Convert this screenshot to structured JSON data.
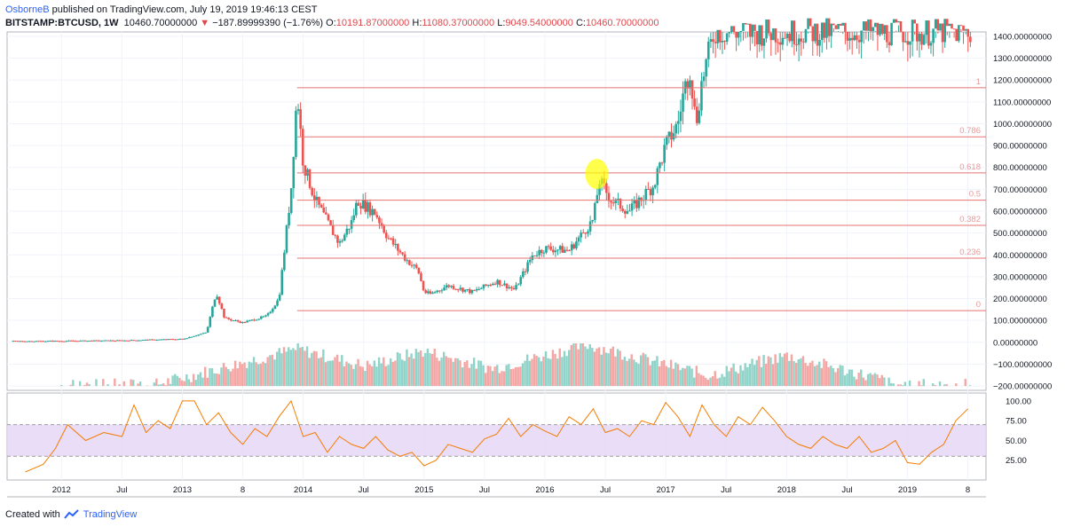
{
  "header": {
    "author": "OsborneB",
    "published": "published on TradingView.com, July 19, 2019 19:46:13 CEST"
  },
  "ohlc": {
    "symbol": "BITSTAMP:BTCUSD, 1W",
    "price": "10460.70000000",
    "change": "−187.89999390 (−1.76%)",
    "o_label": "O:",
    "o": "10191.87000000",
    "h_label": "H:",
    "h": "11080.37000000",
    "l_label": "L:",
    "l": "9049.54000000",
    "c_label": "C:",
    "c": "10460.70000000"
  },
  "footer": {
    "created_with": "Created with",
    "brand": "TradingView"
  },
  "colors": {
    "up": "#26a69a",
    "down": "#ef5350",
    "fib": "#e57373",
    "rsi": "#f57c00",
    "rsi_band": "#e5d4f5",
    "highlight": "#ffff00"
  },
  "chart_data": [
    {
      "type": "candlestick",
      "ylim": [
        -220,
        1420
      ],
      "y_ticks": [
        "1400.00000000",
        "1300.00000000",
        "1200.00000000",
        "1100.00000000",
        "1000.00000000",
        "900.00000000",
        "800.00000000",
        "700.00000000",
        "600.00000000",
        "500.00000000",
        "400.00000000",
        "300.00000000",
        "200.00000000",
        "100.00000000",
        "0.00000000",
        "−100.00000000",
        "−200.00000000"
      ],
      "y_tick_values": [
        1400,
        1300,
        1200,
        1100,
        1000,
        900,
        800,
        700,
        600,
        500,
        400,
        300,
        200,
        100,
        0,
        -100,
        -200
      ],
      "x_ticks": [
        "2012",
        "Jul",
        "2013",
        "8",
        "2014",
        "Jul",
        "2015",
        "Jul",
        "2016",
        "Jul",
        "2017",
        "Jul",
        "2018",
        "Jul",
        "2019",
        "8"
      ],
      "x_tick_times": [
        2012.0,
        2012.5,
        2013.0,
        2013.5,
        2014.0,
        2014.5,
        2015.0,
        2015.5,
        2016.0,
        2016.5,
        2017.0,
        2017.5,
        2018.0,
        2018.5,
        2019.0,
        2019.5
      ],
      "price_path": [
        [
          2011.6,
          5
        ],
        [
          2012.0,
          6
        ],
        [
          2012.5,
          8
        ],
        [
          2013.0,
          15
        ],
        [
          2013.2,
          45
        ],
        [
          2013.28,
          230
        ],
        [
          2013.35,
          110
        ],
        [
          2013.5,
          90
        ],
        [
          2013.7,
          120
        ],
        [
          2013.8,
          200
        ],
        [
          2013.9,
          700
        ],
        [
          2013.95,
          1150
        ],
        [
          2014.0,
          820
        ],
        [
          2014.1,
          650
        ],
        [
          2014.2,
          550
        ],
        [
          2014.3,
          450
        ],
        [
          2014.4,
          550
        ],
        [
          2014.45,
          650
        ],
        [
          2014.6,
          590
        ],
        [
          2014.7,
          480
        ],
        [
          2014.85,
          380
        ],
        [
          2014.95,
          330
        ],
        [
          2015.0,
          230
        ],
        [
          2015.05,
          220
        ],
        [
          2015.2,
          260
        ],
        [
          2015.4,
          230
        ],
        [
          2015.6,
          280
        ],
        [
          2015.75,
          240
        ],
        [
          2015.9,
          400
        ],
        [
          2016.0,
          430
        ],
        [
          2016.2,
          420
        ],
        [
          2016.4,
          560
        ],
        [
          2016.45,
          740
        ],
        [
          2016.55,
          650
        ],
        [
          2016.7,
          600
        ],
        [
          2016.9,
          720
        ],
        [
          2017.0,
          900
        ],
        [
          2017.1,
          1000
        ],
        [
          2017.15,
          1150
        ],
        [
          2017.2,
          1250
        ],
        [
          2017.25,
          1000
        ],
        [
          2017.3,
          1200
        ],
        [
          2017.4,
          1420
        ]
      ],
      "volume": {
        "baseline_value": -200,
        "peaks": [
          [
            2013.95,
            -30
          ],
          [
            2015.0,
            -40
          ],
          [
            2016.35,
            -10
          ],
          [
            2017.0,
            -110
          ],
          [
            2018.0,
            -60
          ]
        ]
      },
      "fib_levels": [
        {
          "label": "1",
          "value": 1165
        },
        {
          "label": "0.786",
          "value": 940
        },
        {
          "label": "0.618",
          "value": 775
        },
        {
          "label": "0.5",
          "value": 650
        },
        {
          "label": "0.382",
          "value": 535
        },
        {
          "label": "0.236",
          "value": 385
        },
        {
          "label": "0",
          "value": 145
        }
      ],
      "fib_start_time": 2013.95,
      "highlight": {
        "time": 2016.43,
        "value": 770
      }
    },
    {
      "type": "line",
      "name": "RSI",
      "ylim": [
        0,
        110
      ],
      "y_ticks": [
        "100.00",
        "75.00",
        "50.00",
        "25.00"
      ],
      "y_tick_values": [
        100,
        75,
        50,
        25
      ],
      "band": [
        30,
        70
      ],
      "x": [
        2011.7,
        2011.85,
        2011.95,
        2012.05,
        2012.2,
        2012.35,
        2012.5,
        2012.6,
        2012.7,
        2012.8,
        2012.9,
        2013.0,
        2013.1,
        2013.2,
        2013.3,
        2013.4,
        2013.5,
        2013.6,
        2013.7,
        2013.8,
        2013.9,
        2014.0,
        2014.1,
        2014.2,
        2014.3,
        2014.4,
        2014.5,
        2014.6,
        2014.7,
        2014.8,
        2014.9,
        2015.0,
        2015.1,
        2015.2,
        2015.3,
        2015.4,
        2015.5,
        2015.6,
        2015.7,
        2015.8,
        2015.9,
        2016.0,
        2016.1,
        2016.2,
        2016.3,
        2016.4,
        2016.5,
        2016.6,
        2016.7,
        2016.8,
        2016.9,
        2017.0,
        2017.1,
        2017.2,
        2017.3,
        2017.4,
        2017.5,
        2017.6,
        2017.7,
        2017.8,
        2017.9,
        2018.0,
        2018.1,
        2018.2,
        2018.3,
        2018.4,
        2018.5,
        2018.6,
        2018.7,
        2018.8,
        2018.9,
        2019.0,
        2019.1,
        2019.2,
        2019.3,
        2019.4,
        2019.5
      ],
      "values": [
        10,
        20,
        40,
        70,
        50,
        60,
        55,
        95,
        60,
        75,
        65,
        100,
        100,
        70,
        85,
        60,
        45,
        65,
        55,
        80,
        100,
        55,
        60,
        35,
        55,
        45,
        40,
        55,
        38,
        30,
        35,
        18,
        25,
        45,
        40,
        35,
        52,
        58,
        78,
        55,
        70,
        62,
        55,
        80,
        70,
        90,
        60,
        65,
        55,
        75,
        70,
        98,
        80,
        55,
        95,
        70,
        55,
        80,
        70,
        92,
        75,
        55,
        45,
        40,
        55,
        45,
        40,
        55,
        35,
        40,
        50,
        22,
        20,
        35,
        45,
        75,
        90
      ]
    }
  ]
}
